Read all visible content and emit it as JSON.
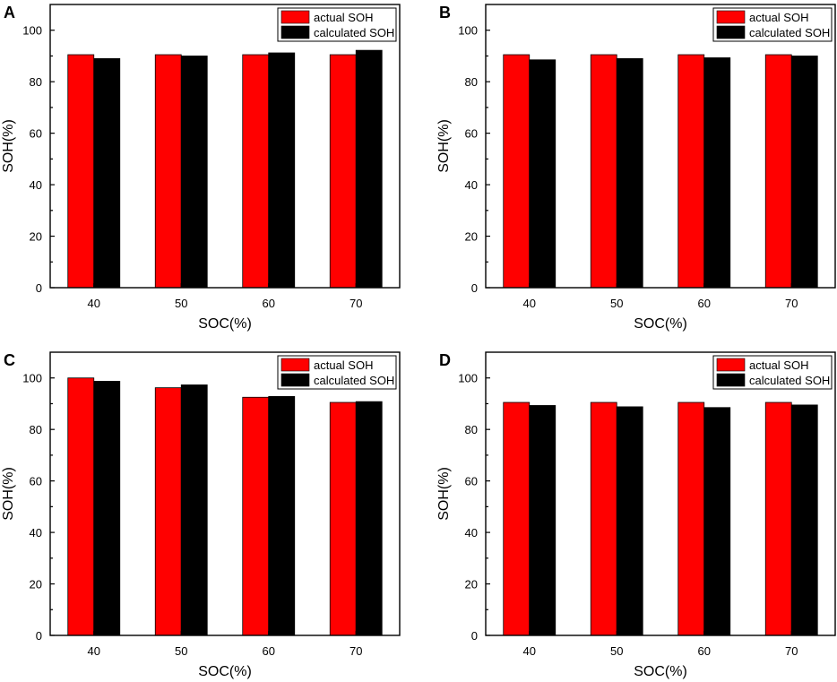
{
  "figure_title": "",
  "colors": {
    "actual": "#ff0000",
    "calculated": "#000000"
  },
  "chart_data": [
    {
      "panel": "A",
      "type": "bar",
      "categories": [
        "40",
        "50",
        "60",
        "70"
      ],
      "series": [
        {
          "name": "actual SOH",
          "values": [
            90.5,
            90.5,
            90.5,
            90.5
          ]
        },
        {
          "name": "calculated SOH",
          "values": [
            89.0,
            90.0,
            91.2,
            92.2
          ]
        }
      ],
      "xlabel": "SOC(%)",
      "ylabel": "SOH(%)",
      "ylim": [
        0,
        110
      ],
      "yticks": [
        0,
        20,
        40,
        60,
        80,
        100
      ],
      "legend": "top-right"
    },
    {
      "panel": "B",
      "type": "bar",
      "categories": [
        "40",
        "50",
        "60",
        "70"
      ],
      "series": [
        {
          "name": "actual SOH",
          "values": [
            90.5,
            90.5,
            90.5,
            90.5
          ]
        },
        {
          "name": "calculated SOH",
          "values": [
            88.5,
            89.0,
            89.3,
            90.0
          ]
        }
      ],
      "xlabel": "SOC(%)",
      "ylabel": "SOH(%)",
      "ylim": [
        0,
        110
      ],
      "yticks": [
        0,
        20,
        40,
        60,
        80,
        100
      ],
      "legend": "top-right"
    },
    {
      "panel": "C",
      "type": "bar",
      "categories": [
        "40",
        "50",
        "60",
        "70"
      ],
      "series": [
        {
          "name": "actual SOH",
          "values": [
            100.0,
            96.2,
            92.5,
            90.5
          ]
        },
        {
          "name": "calculated SOH",
          "values": [
            98.7,
            97.3,
            92.8,
            90.8
          ]
        }
      ],
      "xlabel": "SOC(%)",
      "ylabel": "SOH(%)",
      "ylim": [
        0,
        110
      ],
      "yticks": [
        0,
        20,
        40,
        60,
        80,
        100
      ],
      "legend": "top-right"
    },
    {
      "panel": "D",
      "type": "bar",
      "categories": [
        "40",
        "50",
        "60",
        "70"
      ],
      "series": [
        {
          "name": "actual SOH",
          "values": [
            90.5,
            90.5,
            90.5,
            90.5
          ]
        },
        {
          "name": "calculated SOH",
          "values": [
            89.3,
            88.8,
            88.5,
            89.5
          ]
        }
      ],
      "xlabel": "SOC(%)",
      "ylabel": "SOH(%)",
      "ylim": [
        0,
        110
      ],
      "yticks": [
        0,
        20,
        40,
        60,
        80,
        100
      ],
      "legend": "top-right"
    }
  ]
}
